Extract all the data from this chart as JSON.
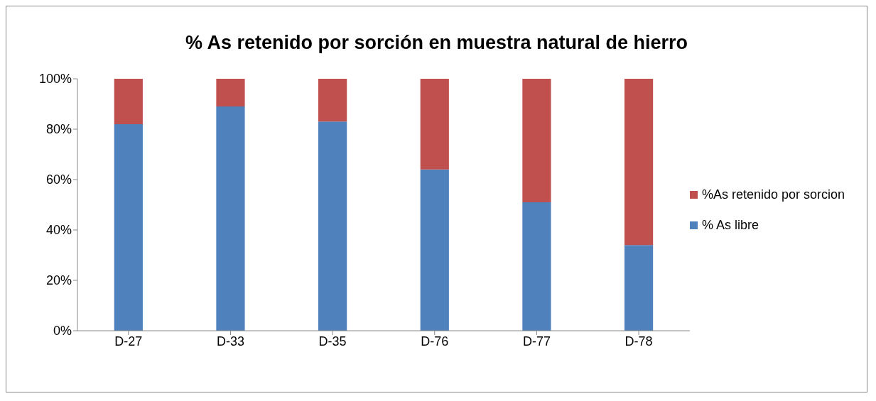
{
  "chart_data": {
    "type": "bar",
    "title": "% As retenido por sorción en muestra natural de hierro",
    "categories": [
      "D-27",
      "D-33",
      "D-35",
      "D-76",
      "D-77",
      "D-78"
    ],
    "stacked": true,
    "series": [
      {
        "name": "% As libre",
        "color": "#4f81bd",
        "values": [
          82,
          89,
          83,
          64,
          51,
          34
        ]
      },
      {
        "name": "%As retenido por sorcion",
        "color": "#c0504d",
        "values": [
          18,
          11,
          17,
          36,
          49,
          66
        ]
      }
    ],
    "ylim": [
      0,
      100
    ],
    "yticks": [
      {
        "value": 0,
        "label": "0%"
      },
      {
        "value": 20,
        "label": "20%"
      },
      {
        "value": 40,
        "label": "40%"
      },
      {
        "value": 60,
        "label": "60%"
      },
      {
        "value": 80,
        "label": "80%"
      },
      {
        "value": 100,
        "label": "100%"
      }
    ],
    "grid": false,
    "legend": "right"
  }
}
